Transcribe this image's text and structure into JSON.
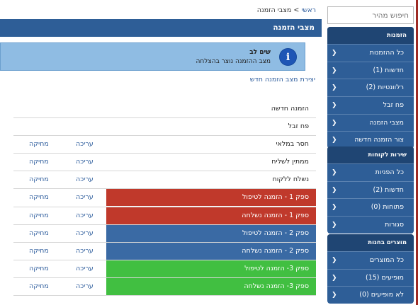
{
  "search": {
    "placeholder": "חיפוש מהיר"
  },
  "breadcrumb": {
    "home": "ראשי",
    "separator": ">",
    "current": "מצבי הזמנה"
  },
  "page": {
    "title": "מצבי הזמנה"
  },
  "alert": {
    "title": "שים לב",
    "text": "מצב ההזמנה נוצר בהצלחה",
    "icon": "info-icon"
  },
  "create_link": "יצירת מצב הזמנה חדש",
  "colors": {
    "red": "#c0392b",
    "blue": "#3a6aa4",
    "green": "#41bf41",
    "nav_blue": "#2e5e97",
    "nav_header": "#1f4573"
  },
  "table": {
    "rows": [
      {
        "name": "הזמנה חדשה",
        "color": "",
        "edit": "",
        "delete": ""
      },
      {
        "name": "פח זבל",
        "color": "",
        "edit": "",
        "delete": ""
      },
      {
        "name": "חסר במלאי",
        "color": "",
        "edit": "עריכה",
        "delete": "מחיקה"
      },
      {
        "name": "ממתין לשליח",
        "color": "",
        "edit": "עריכה",
        "delete": "מחיקה"
      },
      {
        "name": "נשלח ללקוח",
        "color": "",
        "edit": "עריכה",
        "delete": "מחיקה"
      },
      {
        "name": "ספק 1 - הזמנה לטיפול",
        "color": "#c0392b",
        "edit": "עריכה",
        "delete": "מחיקה"
      },
      {
        "name": "ספק 1 - הזמנה נשלחה",
        "color": "#c0392b",
        "edit": "עריכה",
        "delete": "מחיקה"
      },
      {
        "name": "ספק 2 - הזמנה לטיפול",
        "color": "#3a6aa4",
        "edit": "עריכה",
        "delete": "מחיקה"
      },
      {
        "name": "ספק 2 - הזמנה נשלחה",
        "color": "#3a6aa4",
        "edit": "עריכה",
        "delete": "מחיקה"
      },
      {
        "name": "ספק 3- הזמנה לטיפול",
        "color": "#41bf41",
        "edit": "עריכה",
        "delete": "מחיקה"
      },
      {
        "name": "ספק 3- הזמנה נשלחה",
        "color": "#41bf41",
        "edit": "עריכה",
        "delete": "מחיקה"
      }
    ]
  },
  "sidebar": {
    "panels": [
      {
        "title": "הזמנות",
        "items": [
          "כל ההזמנות",
          "חדשות (1)",
          "רלוונטיות (2)",
          "פח זבל",
          "מצבי הזמנה",
          "צור הזמנה חדשה"
        ]
      },
      {
        "title": "שירות לקוחות",
        "items": [
          "כל הפניות",
          "חדשות (2)",
          "פתוחות (0)",
          "סגורות"
        ]
      },
      {
        "title": "מוצרים בחנות",
        "items": [
          "כל המוצרים",
          "מופיעים (15)",
          "לא מופיעים (0)"
        ]
      }
    ]
  }
}
